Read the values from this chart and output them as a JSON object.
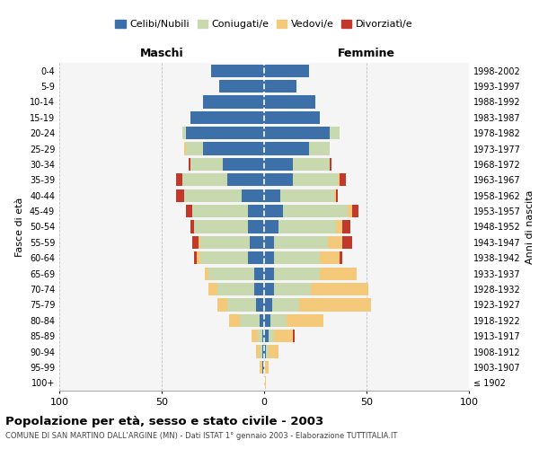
{
  "age_groups": [
    "100+",
    "95-99",
    "90-94",
    "85-89",
    "80-84",
    "75-79",
    "70-74",
    "65-69",
    "60-64",
    "55-59",
    "50-54",
    "45-49",
    "40-44",
    "35-39",
    "30-34",
    "25-29",
    "20-24",
    "15-19",
    "10-14",
    "5-9",
    "0-4"
  ],
  "birth_years": [
    "≤ 1902",
    "1903-1907",
    "1908-1912",
    "1913-1917",
    "1918-1922",
    "1923-1927",
    "1928-1932",
    "1933-1937",
    "1938-1942",
    "1943-1947",
    "1948-1952",
    "1953-1957",
    "1958-1962",
    "1963-1967",
    "1968-1972",
    "1973-1977",
    "1978-1982",
    "1983-1987",
    "1988-1992",
    "1993-1997",
    "1998-2002"
  ],
  "maschi_celibi": [
    0,
    1,
    1,
    1,
    2,
    4,
    5,
    5,
    8,
    7,
    8,
    8,
    11,
    18,
    20,
    30,
    38,
    36,
    30,
    22,
    26
  ],
  "maschi_coniugati": [
    0,
    0,
    1,
    2,
    10,
    14,
    18,
    22,
    23,
    24,
    26,
    27,
    28,
    22,
    16,
    8,
    2,
    0,
    0,
    0,
    0
  ],
  "maschi_vedovi": [
    0,
    1,
    2,
    3,
    5,
    5,
    4,
    2,
    2,
    1,
    0,
    0,
    0,
    0,
    0,
    1,
    0,
    0,
    0,
    0,
    0
  ],
  "maschi_divorziati": [
    0,
    0,
    0,
    0,
    0,
    0,
    0,
    0,
    1,
    3,
    2,
    3,
    4,
    3,
    1,
    0,
    0,
    0,
    0,
    0,
    0
  ],
  "femmine_celibi": [
    0,
    0,
    1,
    2,
    3,
    4,
    5,
    5,
    5,
    5,
    7,
    9,
    8,
    14,
    14,
    22,
    32,
    27,
    25,
    16,
    22
  ],
  "femmine_coniugati": [
    0,
    0,
    1,
    3,
    8,
    13,
    18,
    22,
    22,
    26,
    28,
    32,
    26,
    22,
    18,
    10,
    5,
    0,
    0,
    0,
    0
  ],
  "femmine_vedovi": [
    1,
    2,
    5,
    9,
    18,
    35,
    28,
    18,
    10,
    7,
    3,
    2,
    1,
    1,
    0,
    0,
    0,
    0,
    0,
    0,
    0
  ],
  "femmine_divorziati": [
    0,
    0,
    0,
    1,
    0,
    0,
    0,
    0,
    1,
    5,
    4,
    3,
    1,
    3,
    1,
    0,
    0,
    0,
    0,
    0,
    0
  ],
  "color_celibi": "#3d6fa8",
  "color_coniugati": "#c8d9b0",
  "color_vedovi": "#f5c97a",
  "color_divorziati": "#c0392b",
  "title": "Popolazione per età, sesso e stato civile - 2003",
  "subtitle": "COMUNE DI SAN MARTINO DALL'ARGINE (MN) - Dati ISTAT 1° gennaio 2003 - Elaborazione TUTTITALIA.IT",
  "ylabel_left": "Fasce di età",
  "ylabel_right": "Anni di nascita",
  "xlabel_left": "Maschi",
  "xlabel_right": "Femmine",
  "xlim": 100,
  "bg_color": "#ffffff",
  "grid_color": "#cccccc"
}
